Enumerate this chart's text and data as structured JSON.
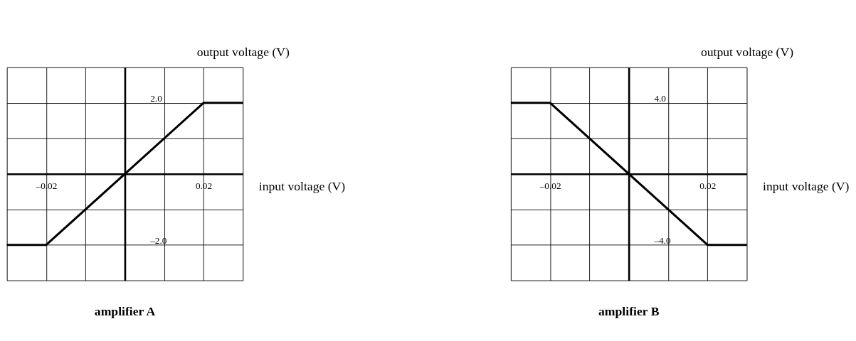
{
  "chart_data": [
    {
      "type": "line",
      "title": "amplifier A",
      "xlabel": "input voltage (V)",
      "ylabel": "output voltage (V)",
      "x": [
        -0.03,
        -0.02,
        0.02,
        0.03
      ],
      "series": [
        {
          "color": "#000000",
          "values": [
            -2.0,
            -2.0,
            2.0,
            2.0
          ]
        }
      ],
      "xlim": [
        -0.03,
        0.03
      ],
      "ylim": [
        -3,
        3
      ],
      "xticks": [
        {
          "value": -0.03,
          "label": null
        },
        {
          "value": -0.02,
          "label": "–0.02"
        },
        {
          "value": -0.01,
          "label": null
        },
        {
          "value": 0.01,
          "label": null
        },
        {
          "value": 0.02,
          "label": "0.02"
        },
        {
          "value": 0.03,
          "label": null
        }
      ],
      "yticks": [
        {
          "value": -3,
          "label": null
        },
        {
          "value": -2,
          "label": "–2.0"
        },
        {
          "value": -1,
          "label": null
        },
        {
          "value": 1,
          "label": null
        },
        {
          "value": 2,
          "label": "2.0"
        },
        {
          "value": 3,
          "label": null
        }
      ],
      "grid": true,
      "legend": false,
      "marker": "none",
      "line_style": "solid"
    },
    {
      "type": "line",
      "title": "amplifier B",
      "xlabel": "input voltage (V)",
      "ylabel": "output voltage (V)",
      "x": [
        -0.03,
        -0.02,
        0.02,
        0.03
      ],
      "series": [
        {
          "color": "#000000",
          "values": [
            4.0,
            4.0,
            -4.0,
            -4.0
          ]
        }
      ],
      "xlim": [
        -0.03,
        0.03
      ],
      "ylim": [
        -6,
        6
      ],
      "xticks": [
        {
          "value": -0.03,
          "label": null
        },
        {
          "value": -0.02,
          "label": "–0.02"
        },
        {
          "value": -0.01,
          "label": null
        },
        {
          "value": 0.01,
          "label": null
        },
        {
          "value": 0.02,
          "label": "0.02"
        },
        {
          "value": 0.03,
          "label": null
        }
      ],
      "yticks": [
        {
          "value": -6,
          "label": null
        },
        {
          "value": -4,
          "label": "–4.0"
        },
        {
          "value": -2,
          "label": null
        },
        {
          "value": 2,
          "label": null
        },
        {
          "value": 4,
          "label": "4.0"
        },
        {
          "value": 6,
          "label": null
        }
      ],
      "grid": true,
      "legend": false,
      "marker": "none",
      "line_style": "solid"
    }
  ]
}
